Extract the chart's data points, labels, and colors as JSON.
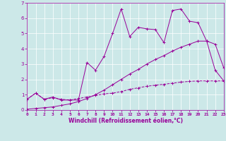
{
  "xlabel": "Windchill (Refroidissement éolien,°C)",
  "ylabel": "",
  "bg_color": "#cce8e8",
  "line_color": "#990099",
  "xlim": [
    0,
    23
  ],
  "ylim": [
    0,
    7
  ],
  "xticks": [
    0,
    1,
    2,
    3,
    4,
    5,
    6,
    7,
    8,
    9,
    10,
    11,
    12,
    13,
    14,
    15,
    16,
    17,
    18,
    19,
    20,
    21,
    22,
    23
  ],
  "yticks": [
    0,
    1,
    2,
    3,
    4,
    5,
    6,
    7
  ],
  "series1_x": [
    0,
    1,
    2,
    3,
    4,
    5,
    6,
    7,
    8,
    9,
    10,
    11,
    12,
    13,
    14,
    15,
    16,
    17,
    18,
    19,
    20,
    21,
    22,
    23
  ],
  "series1_y": [
    0.7,
    1.1,
    0.7,
    0.8,
    0.7,
    0.65,
    0.75,
    0.85,
    0.95,
    1.05,
    1.1,
    1.2,
    1.35,
    1.45,
    1.55,
    1.62,
    1.68,
    1.75,
    1.82,
    1.87,
    1.9,
    1.9,
    1.9,
    1.9
  ],
  "series2_x": [
    0,
    1,
    2,
    3,
    4,
    5,
    6,
    7,
    8,
    9,
    10,
    11,
    12,
    13,
    14,
    15,
    16,
    17,
    18,
    19,
    20,
    21,
    22,
    23
  ],
  "series2_y": [
    0.05,
    0.1,
    0.15,
    0.2,
    0.3,
    0.4,
    0.55,
    0.75,
    1.0,
    1.3,
    1.65,
    2.0,
    2.35,
    2.65,
    3.0,
    3.3,
    3.55,
    3.85,
    4.1,
    4.3,
    4.5,
    4.5,
    4.3,
    2.75
  ],
  "series3_x": [
    0,
    1,
    2,
    3,
    4,
    5,
    6,
    7,
    8,
    9,
    10,
    11,
    12,
    13,
    14,
    15,
    16,
    17,
    18,
    19,
    20,
    21,
    22,
    23
  ],
  "series3_y": [
    0.7,
    1.1,
    0.7,
    0.85,
    0.65,
    0.65,
    0.65,
    3.1,
    2.6,
    3.5,
    5.0,
    6.6,
    4.8,
    5.4,
    5.3,
    5.25,
    4.4,
    6.5,
    6.6,
    5.8,
    5.7,
    4.5,
    2.6,
    1.9
  ]
}
